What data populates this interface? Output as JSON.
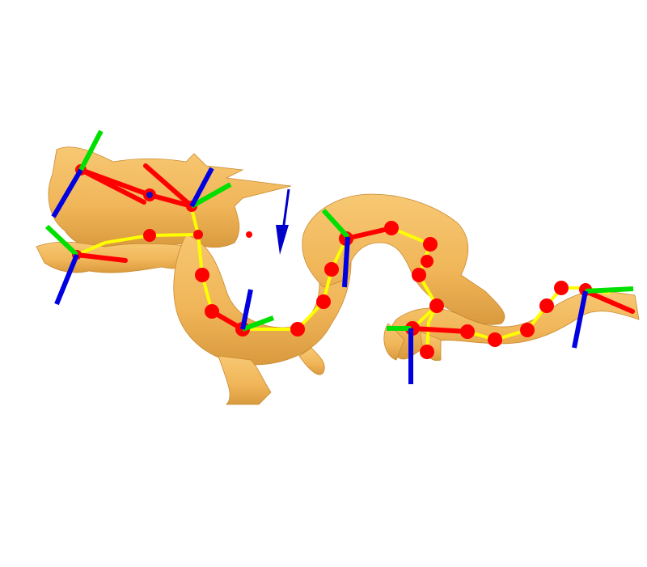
{
  "scene": {
    "background": "#ffffff",
    "subject": "dragon-mesh-with-skeleton-rig",
    "colors": {
      "mesh": "#f3b85e",
      "mesh_shade": "#d99a3e",
      "skeleton_curve": "#ffff00",
      "joint": "#ff0000",
      "axis_x": "#ff0000",
      "axis_y": "#00e000",
      "axis_z": "#0000e0",
      "gravity_arrow": "#0000c8"
    },
    "icons": {
      "joint": "red-dot",
      "frame": "rgb-axis-triad",
      "arrow": "blue-cone-arrow"
    }
  }
}
